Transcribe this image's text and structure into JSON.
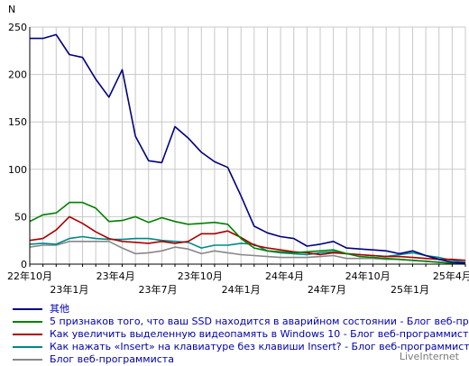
{
  "chart_data": {
    "type": "line",
    "ylabel": "N",
    "ylim": [
      0,
      250
    ],
    "yticks": [
      0,
      50,
      100,
      150,
      200,
      250
    ],
    "grid": true,
    "x_count": 34,
    "xtick_labels": [
      {
        "label": "22年10月",
        "index": 0,
        "row": 1
      },
      {
        "label": "23年1月",
        "index": 3,
        "row": 2
      },
      {
        "label": "23年4月",
        "index": 6.5,
        "row": 1
      },
      {
        "label": "23年7月",
        "index": 9.7,
        "row": 2
      },
      {
        "label": "23年10月",
        "index": 12.9,
        "row": 1
      },
      {
        "label": "24年1月",
        "index": 16,
        "row": 2
      },
      {
        "label": "24年4月",
        "index": 19.3,
        "row": 1
      },
      {
        "label": "24年7月",
        "index": 22.5,
        "row": 2
      },
      {
        "label": "24年10月",
        "index": 25.6,
        "row": 1
      },
      {
        "label": "25年1月",
        "index": 28.8,
        "row": 2
      },
      {
        "label": "25年4月",
        "index": 32,
        "row": 1
      }
    ],
    "series": [
      {
        "name": "其他",
        "color": "#000080",
        "values": [
          238,
          238,
          242,
          221,
          218,
          195,
          176,
          205,
          135,
          109,
          107,
          145,
          133,
          118,
          108,
          102,
          72,
          40,
          33,
          29,
          27,
          19,
          21,
          24,
          17,
          16,
          15,
          14,
          11,
          14,
          9,
          5,
          2,
          1
        ]
      },
      {
        "name": "5 признаков того, что ваш SSD находится в аварийном состоянии - Блог веб-программиста",
        "color": "#008000",
        "values": [
          45,
          52,
          54,
          65,
          65,
          59,
          45,
          46,
          50,
          44,
          49,
          45,
          42,
          43,
          44,
          42,
          27,
          17,
          14,
          13,
          12,
          13,
          14,
          15,
          11,
          8,
          7,
          6,
          5,
          4,
          3,
          2,
          1,
          1
        ]
      },
      {
        "name": "Как увеличить выделенную видеопамять в Windows 10 - Блог веб-программиста",
        "color": "#aa0000",
        "values": [
          25,
          27,
          36,
          50,
          43,
          34,
          27,
          24,
          23,
          22,
          24,
          22,
          24,
          32,
          32,
          35,
          28,
          20,
          17,
          15,
          13,
          12,
          10,
          12,
          11,
          10,
          9,
          8,
          8,
          7,
          6,
          5,
          5,
          4
        ]
      },
      {
        "name": "Как нажать «Insert» на клавиатуре без клавиши Insert? - Блог веб-программиста",
        "color": "#008888",
        "values": [
          21,
          22,
          21,
          27,
          29,
          27,
          26,
          26,
          27,
          27,
          25,
          24,
          23,
          17,
          20,
          20,
          22,
          21,
          14,
          12,
          11,
          10,
          12,
          13,
          11,
          10,
          9,
          8,
          10,
          12,
          9,
          7,
          4,
          2
        ]
      },
      {
        "name": "Блог веб-программиста",
        "color": "#888888",
        "values": [
          18,
          20,
          20,
          24,
          24,
          24,
          24,
          17,
          11,
          12,
          14,
          18,
          16,
          11,
          14,
          12,
          10,
          9,
          8,
          7,
          7,
          7,
          8,
          9,
          6,
          6,
          6,
          5,
          5,
          4,
          3,
          2,
          1,
          0
        ]
      }
    ]
  },
  "brand": "LiveInternet"
}
